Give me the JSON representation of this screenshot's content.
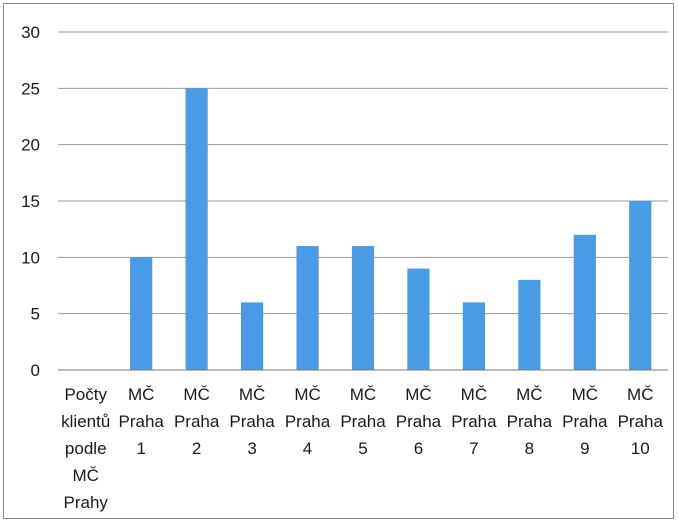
{
  "chart_data": {
    "type": "bar",
    "categories": [
      [
        "Počty",
        "klientů",
        "podle",
        "MČ",
        "Prahy"
      ],
      [
        "MČ",
        "Praha",
        "1"
      ],
      [
        "MČ",
        "Praha",
        "2"
      ],
      [
        "MČ",
        "Praha",
        "3"
      ],
      [
        "MČ",
        "Praha",
        "4"
      ],
      [
        "MČ",
        "Praha",
        "5"
      ],
      [
        "MČ",
        "Praha",
        "6"
      ],
      [
        "MČ",
        "Praha",
        "7"
      ],
      [
        "MČ",
        "Praha",
        "8"
      ],
      [
        "MČ",
        "Praha",
        "9"
      ],
      [
        "MČ",
        "Praha",
        "10"
      ]
    ],
    "values": [
      null,
      10,
      25,
      6,
      11,
      11,
      9,
      6,
      8,
      12,
      15
    ],
    "ylim": [
      0,
      30
    ],
    "yticks": [
      "0",
      "5",
      "10",
      "15",
      "20",
      "25",
      "30"
    ],
    "grid": true,
    "legend": "none",
    "bar_color": "#4a9be6"
  }
}
